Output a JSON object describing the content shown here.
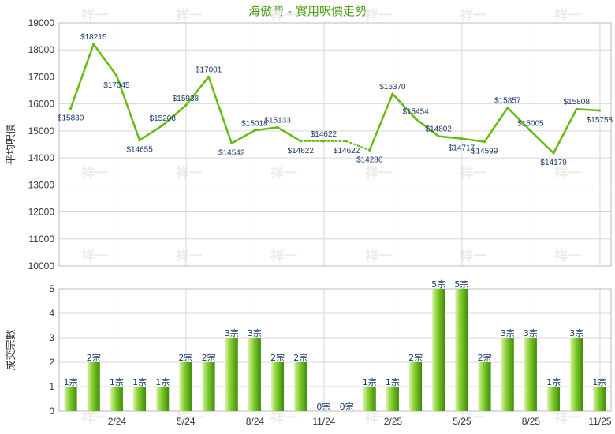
{
  "title": "海傲灣 - 實用呎價走勢",
  "watermark": "祥一",
  "colors": {
    "line": "#66bb11",
    "grid": "#d8d8d8",
    "title": "#4a9a10",
    "bar_light": "#d6f3a2",
    "bar_mid": "#7ecb2a",
    "bar_dark": "#3f8a0c"
  },
  "chart_data": [
    {
      "type": "line",
      "ylabel": "平均呎價",
      "ylim": [
        10000,
        19000
      ],
      "yticks": [
        "10000",
        "11000",
        "12000",
        "13000",
        "14000",
        "15000",
        "16000",
        "17000",
        "18000",
        "19000"
      ],
      "x_ticks": [
        "2/24",
        "5/24",
        "8/24",
        "11/24",
        "2/25",
        "5/25",
        "8/25",
        "11/25"
      ],
      "values": [
        15830,
        18215,
        17045,
        14655,
        15208,
        15938,
        17001,
        14542,
        15018,
        15133,
        14622,
        14622,
        14622,
        14286,
        16370,
        15454,
        14802,
        14717,
        14599,
        15857,
        15005,
        14179,
        15808,
        15758
      ],
      "labels": [
        "$15830",
        "$18215",
        "$17045",
        "$14655",
        "$15208",
        "$15938",
        "$17001",
        "$14542",
        "$15018",
        "$15133",
        "$14622",
        "$14622",
        "$14622",
        "$14286",
        "$16370",
        "$15454",
        "$14802",
        "$14717",
        "$14599",
        "$15857",
        "$15005",
        "$14179",
        "$15808",
        "$15758"
      ],
      "estimated": [
        false,
        false,
        false,
        false,
        false,
        false,
        false,
        false,
        false,
        false,
        false,
        true,
        true,
        false,
        false,
        false,
        false,
        false,
        false,
        false,
        false,
        false,
        false,
        false
      ]
    },
    {
      "type": "bar",
      "ylabel": "成交宗數",
      "ylim": [
        0,
        5
      ],
      "yticks": [
        "0",
        "1",
        "2",
        "3",
        "4",
        "5"
      ],
      "x_ticks": [
        "2/24",
        "5/24",
        "8/24",
        "11/24",
        "2/25",
        "5/25",
        "8/25",
        "11/25"
      ],
      "values": [
        1,
        2,
        1,
        1,
        1,
        2,
        2,
        3,
        3,
        2,
        2,
        0,
        0,
        1,
        1,
        2,
        5,
        5,
        2,
        3,
        3,
        1,
        3,
        1
      ],
      "labels": [
        "1宗",
        "2宗",
        "1宗",
        "1宗",
        "1宗",
        "2宗",
        "2宗",
        "3宗",
        "3宗",
        "2宗",
        "2宗",
        "0宗",
        "0宗",
        "1宗",
        "1宗",
        "2宗",
        "5宗",
        "5宗",
        "2宗",
        "3宗",
        "3宗",
        "1宗",
        "3宗",
        "1宗"
      ]
    }
  ]
}
